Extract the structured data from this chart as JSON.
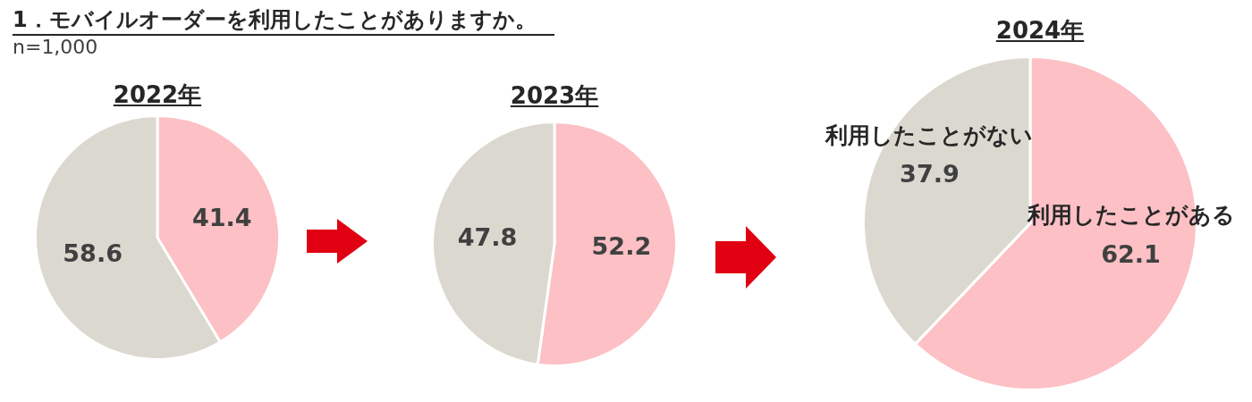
{
  "chart_data": [
    {
      "type": "other",
      "title": "1．モバイルオーダーを利用したことがありますか。",
      "subtitle": "n=1,000"
    },
    {
      "type": "pie",
      "title": "2022年",
      "categories": [
        null,
        null
      ],
      "values": [
        41.4,
        58.6
      ],
      "colors": [
        "#fcc0c5",
        "#dbd8cf"
      ],
      "data_labels": true
    },
    {
      "type": "pie",
      "title": "2023年",
      "categories": [
        null,
        null
      ],
      "values": [
        52.2,
        47.8
      ],
      "colors": [
        "#fcc0c5",
        "#dbd8cf"
      ],
      "data_labels": true
    },
    {
      "type": "pie",
      "title": "2024年",
      "categories": [
        "利用したことがある",
        "利用したことがない"
      ],
      "values": [
        62.1,
        37.9
      ],
      "colors": [
        "#fcc0c5",
        "#dbd8cf"
      ],
      "data_labels": true
    }
  ]
}
